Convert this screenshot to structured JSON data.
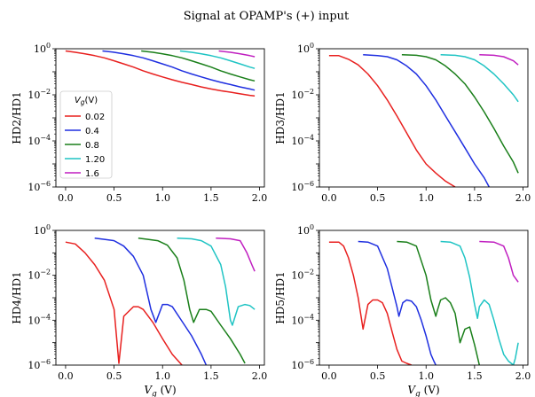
{
  "figure": {
    "title": "Signal at OPAMP's (+) input"
  },
  "chart_data": [
    {
      "type": "line",
      "ylabel": "HD2/HD1",
      "xlabel": "",
      "yscale": "log",
      "ylim": [
        1e-06,
        1
      ],
      "xlim": [
        -0.1,
        2.05
      ],
      "xticks": [
        0.0,
        0.5,
        1.0,
        1.5,
        2.0
      ],
      "yticks": [
        1e-06,
        0.0001,
        0.01,
        1
      ],
      "series": [
        {
          "name": "0.02",
          "color": "#e8201f",
          "x": [
            0.0,
            0.1,
            0.2,
            0.3,
            0.4,
            0.5,
            0.6,
            0.7,
            0.8,
            0.9,
            1.0,
            1.1,
            1.2,
            1.3,
            1.4,
            1.5,
            1.6,
            1.7,
            1.8,
            1.9,
            1.95
          ],
          "y": [
            0.8,
            0.7,
            0.6,
            0.5,
            0.4,
            0.3,
            0.22,
            0.16,
            0.11,
            0.08,
            0.06,
            0.045,
            0.035,
            0.028,
            0.022,
            0.018,
            0.015,
            0.013,
            0.011,
            0.0095,
            0.009
          ]
        },
        {
          "name": "0.4",
          "color": "#1f2fe0",
          "x": [
            0.38,
            0.5,
            0.6,
            0.7,
            0.8,
            0.9,
            1.0,
            1.1,
            1.2,
            1.3,
            1.4,
            1.5,
            1.6,
            1.7,
            1.8,
            1.9,
            1.95
          ],
          "y": [
            0.8,
            0.7,
            0.6,
            0.5,
            0.4,
            0.3,
            0.22,
            0.16,
            0.11,
            0.08,
            0.06,
            0.045,
            0.035,
            0.028,
            0.022,
            0.018,
            0.016
          ]
        },
        {
          "name": "0.8",
          "color": "#1a7f1a",
          "x": [
            0.78,
            0.9,
            1.0,
            1.1,
            1.2,
            1.3,
            1.4,
            1.5,
            1.6,
            1.7,
            1.8,
            1.9,
            1.95
          ],
          "y": [
            0.8,
            0.7,
            0.6,
            0.5,
            0.4,
            0.3,
            0.22,
            0.16,
            0.11,
            0.08,
            0.06,
            0.045,
            0.04
          ]
        },
        {
          "name": "1.20",
          "color": "#1fc4c4",
          "x": [
            1.18,
            1.3,
            1.4,
            1.5,
            1.6,
            1.7,
            1.8,
            1.9,
            1.95
          ],
          "y": [
            0.8,
            0.7,
            0.6,
            0.5,
            0.4,
            0.3,
            0.22,
            0.16,
            0.14
          ]
        },
        {
          "name": "1.6",
          "color": "#c01fc0",
          "x": [
            1.58,
            1.7,
            1.8,
            1.9,
            1.95
          ],
          "y": [
            0.8,
            0.7,
            0.6,
            0.5,
            0.45
          ]
        }
      ],
      "legend": {
        "title": "V_g(V)",
        "placement": "center-left"
      }
    },
    {
      "type": "line",
      "ylabel": "HD3/HD1",
      "xlabel": "",
      "yscale": "log",
      "ylim": [
        1e-06,
        1
      ],
      "xlim": [
        -0.1,
        2.05
      ],
      "xticks": [
        0.0,
        0.5,
        1.0,
        1.5,
        2.0
      ],
      "yticks": [
        1e-06,
        0.0001,
        0.01,
        1
      ],
      "series": [
        {
          "name": "0.02",
          "color": "#e8201f",
          "x": [
            0.0,
            0.1,
            0.2,
            0.3,
            0.4,
            0.5,
            0.6,
            0.7,
            0.8,
            0.9,
            1.0,
            1.1,
            1.2,
            1.3
          ],
          "y": [
            0.5,
            0.5,
            0.35,
            0.2,
            0.08,
            0.025,
            0.006,
            0.0012,
            0.00022,
            4e-05,
            1e-05,
            4e-06,
            1.8e-06,
            1e-06
          ]
        },
        {
          "name": "0.4",
          "color": "#1f2fe0",
          "x": [
            0.35,
            0.5,
            0.6,
            0.7,
            0.8,
            0.9,
            1.0,
            1.1,
            1.2,
            1.3,
            1.4,
            1.5,
            1.6,
            1.65
          ],
          "y": [
            0.55,
            0.5,
            0.45,
            0.33,
            0.18,
            0.08,
            0.025,
            0.006,
            0.0012,
            0.00025,
            5e-05,
            1e-05,
            2.5e-06,
            1e-06
          ]
        },
        {
          "name": "0.8",
          "color": "#1a7f1a",
          "x": [
            0.75,
            0.9,
            1.0,
            1.1,
            1.2,
            1.3,
            1.4,
            1.5,
            1.6,
            1.7,
            1.8,
            1.9,
            1.95
          ],
          "y": [
            0.55,
            0.52,
            0.45,
            0.33,
            0.18,
            0.08,
            0.03,
            0.008,
            0.0018,
            0.00035,
            6e-05,
            1.2e-05,
            4e-06
          ]
        },
        {
          "name": "1.20",
          "color": "#1fc4c4",
          "x": [
            1.15,
            1.3,
            1.4,
            1.5,
            1.6,
            1.7,
            1.8,
            1.9,
            1.95
          ],
          "y": [
            0.55,
            0.52,
            0.45,
            0.33,
            0.18,
            0.08,
            0.03,
            0.01,
            0.005
          ]
        },
        {
          "name": "1.6",
          "color": "#c01fc0",
          "x": [
            1.55,
            1.7,
            1.8,
            1.9,
            1.95
          ],
          "y": [
            0.55,
            0.52,
            0.45,
            0.3,
            0.2
          ]
        }
      ]
    },
    {
      "type": "line",
      "ylabel": "HD4/HD1",
      "xlabel": "V_g (V)",
      "yscale": "log",
      "ylim": [
        1e-06,
        1
      ],
      "xlim": [
        -0.1,
        2.05
      ],
      "xticks": [
        0.0,
        0.5,
        1.0,
        1.5,
        2.0
      ],
      "yticks": [
        1e-06,
        0.0001,
        0.01,
        1
      ],
      "series": [
        {
          "name": "0.02",
          "color": "#e8201f",
          "x": [
            0.0,
            0.1,
            0.2,
            0.3,
            0.4,
            0.5,
            0.55,
            0.6,
            0.7,
            0.75,
            0.8,
            0.9,
            1.0,
            1.1,
            1.2
          ],
          "y": [
            0.3,
            0.25,
            0.1,
            0.03,
            0.006,
            0.0003,
            1.2e-06,
            0.00015,
            0.0004,
            0.0004,
            0.0003,
            8e-05,
            1.5e-05,
            3e-06,
            1e-06
          ]
        },
        {
          "name": "0.4",
          "color": "#1f2fe0",
          "x": [
            0.3,
            0.4,
            0.5,
            0.6,
            0.7,
            0.8,
            0.88,
            0.93,
            1.0,
            1.05,
            1.1,
            1.2,
            1.3,
            1.4,
            1.45
          ],
          "y": [
            0.45,
            0.4,
            0.35,
            0.2,
            0.07,
            0.01,
            0.0003,
            8e-05,
            0.0005,
            0.0005,
            0.0004,
            9e-05,
            2e-05,
            3e-06,
            1e-06
          ]
        },
        {
          "name": "0.8",
          "color": "#1a7f1a",
          "x": [
            0.75,
            0.85,
            0.95,
            1.05,
            1.15,
            1.22,
            1.28,
            1.32,
            1.38,
            1.45,
            1.5,
            1.6,
            1.7,
            1.8,
            1.85
          ],
          "y": [
            0.45,
            0.4,
            0.35,
            0.22,
            0.06,
            0.006,
            0.0003,
            8e-05,
            0.0003,
            0.0003,
            0.00025,
            6e-05,
            1.5e-05,
            3e-06,
            1.2e-06
          ]
        },
        {
          "name": "1.20",
          "color": "#1fc4c4",
          "x": [
            1.15,
            1.3,
            1.4,
            1.5,
            1.6,
            1.65,
            1.7,
            1.72,
            1.78,
            1.85,
            1.9,
            1.95
          ],
          "y": [
            0.45,
            0.42,
            0.35,
            0.2,
            0.03,
            0.003,
            0.0001,
            6e-05,
            0.0004,
            0.0005,
            0.00045,
            0.0003
          ]
        },
        {
          "name": "1.6",
          "color": "#c01fc0",
          "x": [
            1.55,
            1.7,
            1.8,
            1.87,
            1.92,
            1.95
          ],
          "y": [
            0.45,
            0.42,
            0.35,
            0.1,
            0.03,
            0.015
          ]
        }
      ]
    },
    {
      "type": "line",
      "ylabel": "HD5/HD1",
      "xlabel": "V_g (V)",
      "yscale": "log",
      "ylim": [
        1e-06,
        1
      ],
      "xlim": [
        -0.1,
        2.05
      ],
      "xticks": [
        0.0,
        0.5,
        1.0,
        1.5,
        2.0
      ],
      "yticks": [
        1e-06,
        0.0001,
        0.01,
        1
      ],
      "series": [
        {
          "name": "0.02",
          "color": "#e8201f",
          "x": [
            0.0,
            0.1,
            0.15,
            0.2,
            0.25,
            0.3,
            0.35,
            0.4,
            0.45,
            0.5,
            0.55,
            0.6,
            0.65,
            0.7,
            0.75,
            0.8,
            0.85
          ],
          "y": [
            0.3,
            0.3,
            0.2,
            0.06,
            0.01,
            0.001,
            4e-05,
            0.0005,
            0.0008,
            0.0008,
            0.0006,
            0.0002,
            3e-05,
            5e-06,
            1.5e-06,
            1.2e-06,
            1e-06
          ]
        },
        {
          "name": "0.4",
          "color": "#1f2fe0",
          "x": [
            0.3,
            0.4,
            0.5,
            0.6,
            0.7,
            0.72,
            0.76,
            0.8,
            0.85,
            0.9,
            0.95,
            1.0,
            1.05,
            1.08,
            1.1
          ],
          "y": [
            0.32,
            0.3,
            0.2,
            0.02,
            0.0004,
            0.00015,
            0.0006,
            0.0008,
            0.0007,
            0.0004,
            0.0001,
            2e-05,
            3e-06,
            1.5e-06,
            1e-06
          ]
        },
        {
          "name": "0.8",
          "color": "#1a7f1a",
          "x": [
            0.7,
            0.8,
            0.9,
            1.0,
            1.05,
            1.1,
            1.12,
            1.15,
            1.2,
            1.25,
            1.3,
            1.35,
            1.4,
            1.45,
            1.5,
            1.55
          ],
          "y": [
            0.32,
            0.3,
            0.2,
            0.01,
            0.0008,
            0.00015,
            0.0003,
            0.0008,
            0.001,
            0.0006,
            0.0002,
            1e-05,
            4e-05,
            5e-05,
            8e-06,
            1e-06
          ]
        },
        {
          "name": "1.20",
          "color": "#1fc4c4",
          "x": [
            1.15,
            1.25,
            1.35,
            1.4,
            1.45,
            1.5,
            1.53,
            1.55,
            1.6,
            1.65,
            1.7,
            1.75,
            1.8,
            1.85,
            1.9,
            1.92,
            1.95
          ],
          "y": [
            0.32,
            0.3,
            0.2,
            0.06,
            0.008,
            0.0005,
            0.00012,
            0.0004,
            0.0008,
            0.0005,
            0.0001,
            1.5e-05,
            3e-06,
            1.5e-06,
            1e-06,
            2e-06,
            1e-05
          ]
        },
        {
          "name": "1.6",
          "color": "#c01fc0",
          "x": [
            1.55,
            1.7,
            1.8,
            1.85,
            1.9,
            1.95
          ],
          "y": [
            0.32,
            0.3,
            0.2,
            0.06,
            0.01,
            0.005
          ]
        }
      ]
    }
  ]
}
